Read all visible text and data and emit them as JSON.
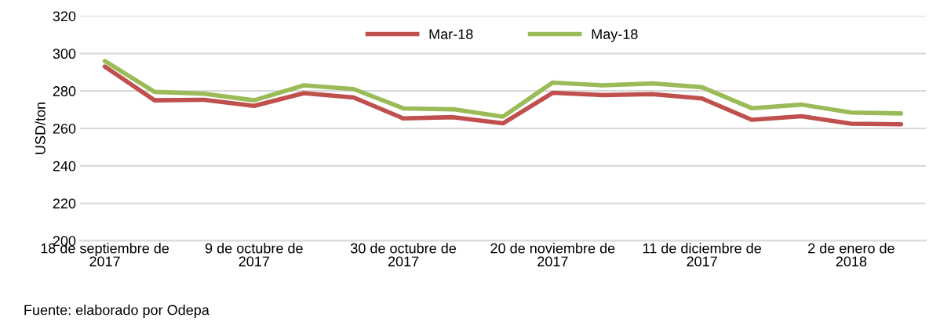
{
  "chart_data": {
    "type": "line",
    "ylabel": "USD/ton",
    "categories": [
      "18 de septiembre de 2017",
      null,
      null,
      "9 de octubre de 2017",
      null,
      null,
      "30 de octubre de 2017",
      null,
      null,
      "20 de noviembre de 2017",
      null,
      null,
      "11 de diciembre de 2017",
      null,
      null,
      "2 de enero de 2018",
      null
    ],
    "series": [
      {
        "name": "Mar-18",
        "color": "#c0504d",
        "values": [
          293,
          275,
          275.3,
          272,
          278.8,
          276.5,
          265.3,
          266,
          262.7,
          279,
          277.8,
          278.3,
          276,
          264.6,
          266.5,
          262.5,
          262.2
        ]
      },
      {
        "name": "May-18",
        "color": "#9bbb59",
        "values": [
          296,
          279.5,
          278.5,
          275,
          283,
          281,
          270.7,
          270.2,
          266.3,
          284.5,
          283,
          284,
          282,
          270.8,
          272.7,
          268.5,
          268
        ]
      }
    ],
    "ylim": [
      200,
      320
    ],
    "yticks": [
      200,
      220,
      240,
      260,
      280,
      300,
      320
    ],
    "grid": "y",
    "legend": "top",
    "marker": "none",
    "line_style": "solid",
    "annotations": [
      "Fuente: elaborado por Odepa"
    ]
  }
}
